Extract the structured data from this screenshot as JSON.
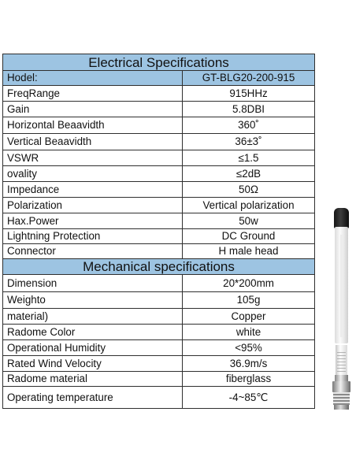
{
  "electrical": {
    "title": "Electrical Specifications",
    "header": [
      "Hodel:",
      "GT-BLG20-200-915"
    ],
    "rows": [
      [
        "FreqRange",
        "915HHz"
      ],
      [
        "Gain",
        "5.8DBI"
      ],
      [
        "Horizontal Beaavidth",
        "360˚"
      ],
      [
        "Vertical Beaavidth",
        "36±3˚"
      ],
      [
        "VSWR",
        "≤1.5"
      ],
      [
        "ovality",
        "≤2dB"
      ],
      [
        "Impedance",
        "50Ω"
      ],
      [
        "Polarization",
        "Vertical polarization"
      ],
      [
        "Hax.Power",
        "50w"
      ],
      [
        "Lightning Protection",
        "DC Ground"
      ],
      [
        "Connector",
        "H male head"
      ]
    ]
  },
  "mechanical": {
    "title": "Mechanical specifications",
    "rows": [
      [
        "Dimension",
        "20*200mm"
      ],
      [
        "Weighto",
        "105g"
      ],
      [
        "material)",
        "Copper"
      ],
      [
        "Radome Color",
        "white"
      ],
      [
        "Operational Humidity",
        "<95%"
      ],
      [
        "Rated Wind Velocity",
        "36.9m/s"
      ],
      [
        "Radome material",
        "fiberglass"
      ],
      [
        "Operating temperature",
        "-4~85℃"
      ]
    ]
  }
}
